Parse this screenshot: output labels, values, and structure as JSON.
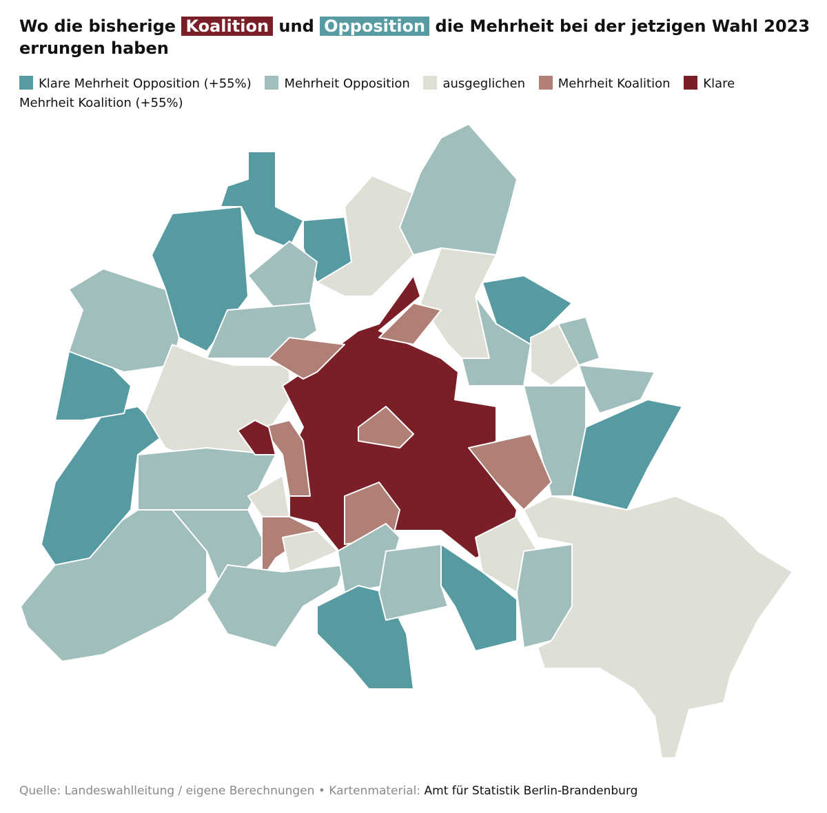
{
  "header": {
    "title_before": "Wo die bisherige",
    "title_highlight_1": "Koalition",
    "title_middle": "und",
    "title_highlight_2": "Opposition",
    "title_after": "die Mehrheit bei der jetzigen Wahl 2023 errungen haben"
  },
  "legend": {
    "items": [
      {
        "label": "Klare Mehrheit Opposition (+55%)",
        "color": "#559ba1"
      },
      {
        "label": "Mehrheit Opposition",
        "color": "#9fbebc"
      },
      {
        "label": "ausgeglichen",
        "color": "#e0dfd6"
      },
      {
        "label": "Mehrheit Koalition",
        "color": "#b07f76"
      },
      {
        "label": "Klare Mehrheit Koalition (+55%)",
        "color": "#7a1f27"
      }
    ]
  },
  "footer": {
    "source": "Quelle: Landeswahlleitung / eigene Berechnungen • Kartenmaterial:",
    "credit": "Amt für Statistik Berlin-Brandenburg"
  }
}
